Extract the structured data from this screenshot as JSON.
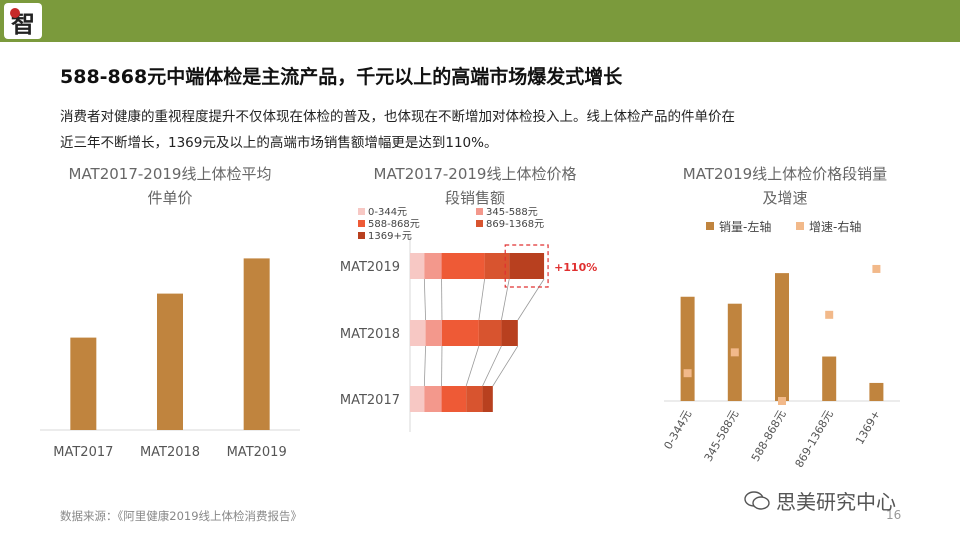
{
  "header": {
    "logo_text": "智",
    "bar_color": "#7b9a3c"
  },
  "title": "588-868元中端体检是主流产品，千元以上的高端市场爆发式增长",
  "paragraph_line1": "消费者对健康的重视程度提升不仅体现在体检的普及，也体现在不断增加对体检投入上。线上体检产品的件单价在",
  "paragraph_line2": "近三年不断增长，1369元及以上的高端市场销售额增幅更是达到110%。",
  "charts": {
    "unit_price": {
      "title_line1": "MAT2017-2019线上体检平均",
      "title_line2": "件单价"
    },
    "price_segment_sales": {
      "title_line1": "MAT2017-2019线上体检价格",
      "title_line2": "段销售额"
    },
    "segment_volume": {
      "title_line1": "MAT2019线上体检价格段销量",
      "title_line2": "及增速"
    }
  },
  "chart_data": [
    {
      "type": "bar",
      "categories": [
        "MAT2017",
        "MAT2018",
        "MAT2019"
      ],
      "values": [
        42,
        62,
        78
      ],
      "ylim": [
        0,
        100
      ],
      "color": "#c0843e"
    },
    {
      "type": "bar",
      "orientation": "horizontal",
      "stacked": true,
      "categories": [
        "MAT2019",
        "MAT2018",
        "MAT2017"
      ],
      "series": [
        {
          "name": "0-344元",
          "color": "#f7c8c4",
          "values": [
            3.5,
            3.8,
            3.5
          ]
        },
        {
          "name": "345-588元",
          "color": "#f3988c",
          "values": [
            4.2,
            4.0,
            4.2
          ]
        },
        {
          "name": "588-868元",
          "color": "#ee5a36",
          "values": [
            10.5,
            9.0,
            6.0
          ]
        },
        {
          "name": "869-1368元",
          "color": "#d8542f",
          "values": [
            6.0,
            5.5,
            4.0
          ]
        },
        {
          "name": "1369+元",
          "color": "#b8401f",
          "values": [
            8.5,
            4.0,
            2.5
          ]
        }
      ],
      "xlim": [
        0,
        40
      ],
      "annotation": "+110%",
      "annotation_color": "#e03030"
    },
    {
      "type": "bar",
      "categories": [
        "0-344元",
        "345-588元",
        "588-868元",
        "869-1368元",
        "1369+"
      ],
      "series": [
        {
          "name": "销量-左轴",
          "color": "#c0843e",
          "values": [
            75,
            70,
            92,
            32,
            13
          ]
        },
        {
          "name": "增速-右轴",
          "color": "#f2b98a",
          "values": [
            20,
            35,
            0,
            62,
            95
          ]
        }
      ],
      "ylim": [
        0,
        100
      ],
      "y2lim": [
        0,
        100
      ]
    }
  ],
  "footer": {
    "source": "数据来源：《阿里健康2019线上体检消费报告》",
    "page": "16"
  },
  "wechat": {
    "label": "思美研究中心"
  }
}
